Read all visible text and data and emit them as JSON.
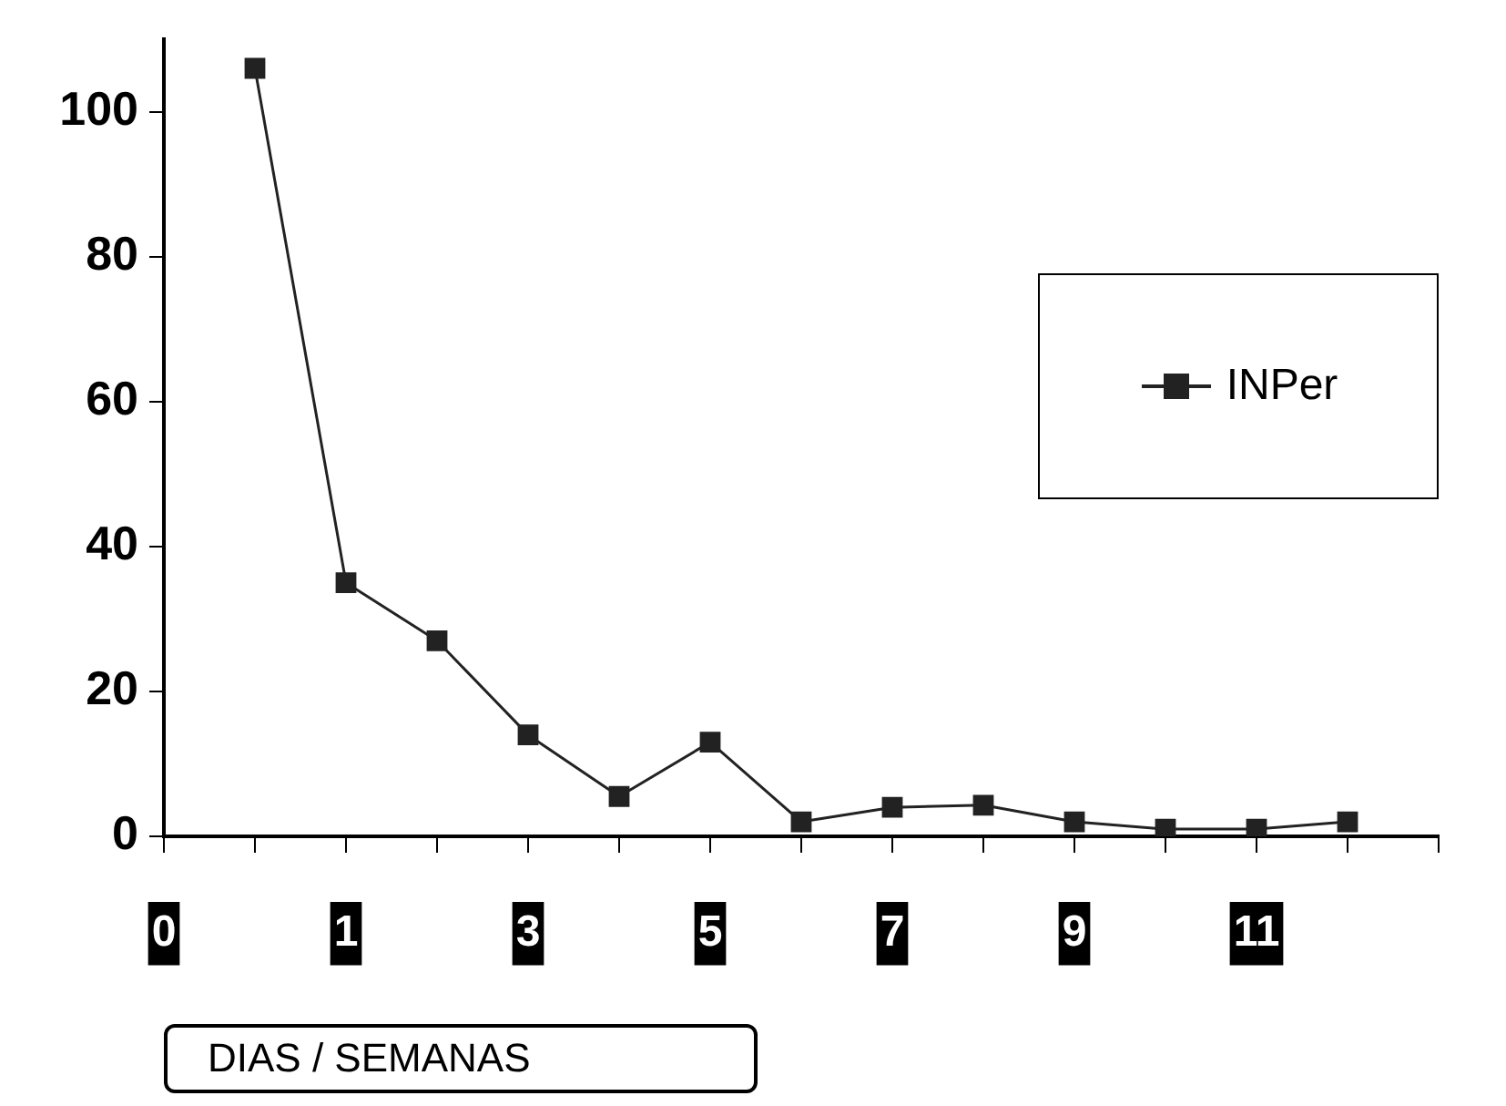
{
  "chart_data": {
    "type": "line",
    "xlabel": "DIAS / SEMANAS",
    "categories": [
      "0",
      null,
      "1",
      null,
      "3",
      null,
      "5",
      null,
      "7",
      null,
      "9",
      null,
      "11",
      null,
      null
    ],
    "series": [
      {
        "name": "INPer",
        "color": "#222222",
        "values": [
          null,
          106,
          35,
          27,
          14,
          5.5,
          13,
          2,
          4,
          4.3,
          2,
          1,
          1,
          2,
          null
        ]
      }
    ],
    "ylim": [
      0,
      110
    ],
    "yticks": [
      0,
      20,
      40,
      60,
      80,
      100
    ],
    "legend": "right",
    "marker": "square",
    "line_style": "solid"
  }
}
